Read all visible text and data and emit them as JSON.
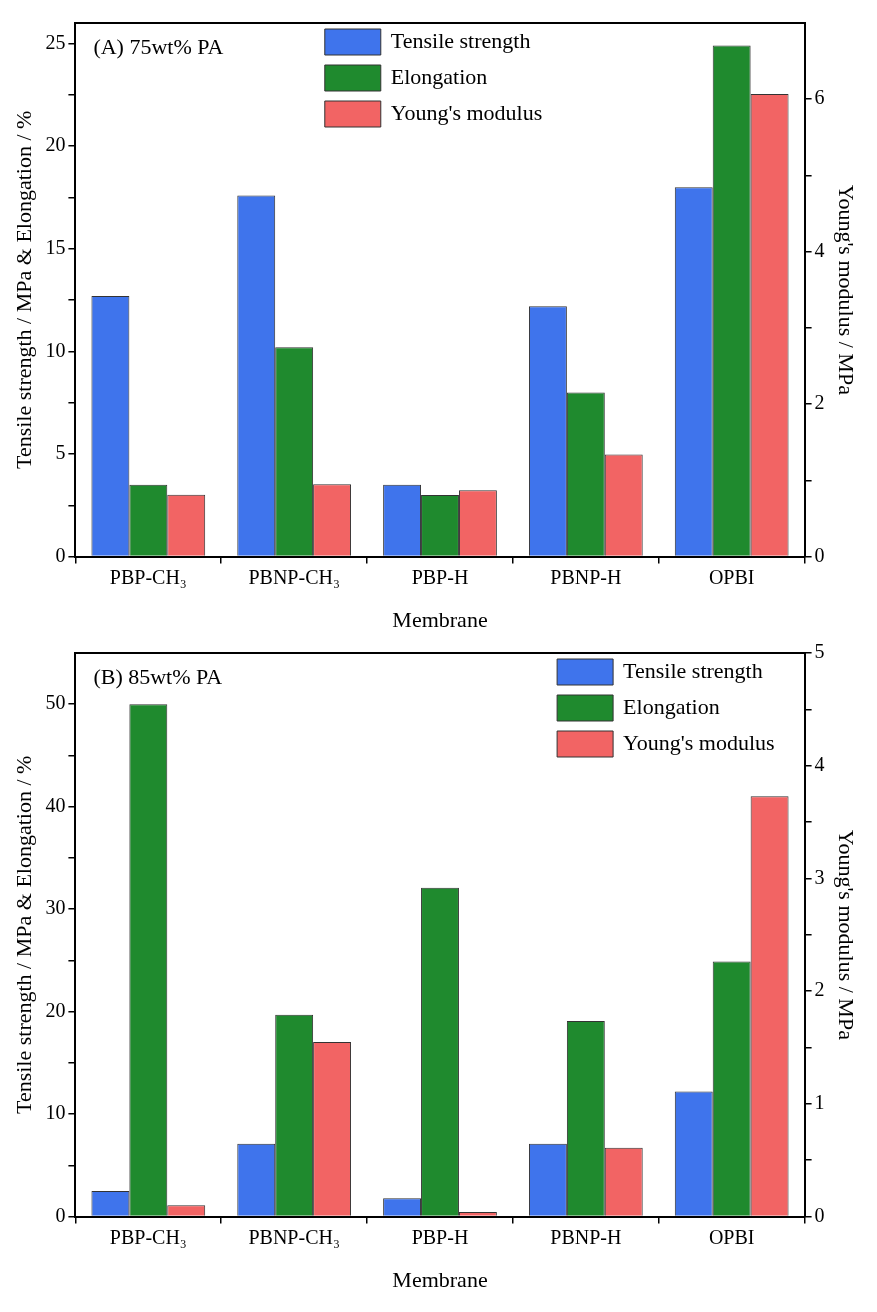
{
  "chart_data": [
    {
      "type": "bar",
      "title": "(A) 75wt% PA",
      "xlabel": "Membrane",
      "ylabel": "Tensile strength / MPa & Elongation / %",
      "y2label": "Young's modulus / MPa",
      "categories": [
        "PBP-CH₃",
        "PBNP-CH₃",
        "PBP-H",
        "PBNP-H",
        "OPBI"
      ],
      "series": [
        {
          "name": "Tensile strength",
          "color": "#3f74ec",
          "values": [
            12.7,
            17.6,
            3.5,
            12.2,
            18.0
          ]
        },
        {
          "name": "Elongation",
          "color": "#1f8a2e",
          "values": [
            3.5,
            10.2,
            3.0,
            8.0,
            24.9
          ]
        },
        {
          "name": "Young's modulus",
          "color": "#f26464",
          "axis": "y2",
          "values": [
            0.81,
            0.95,
            0.87,
            1.34,
            6.07
          ]
        }
      ],
      "ylim": [
        0,
        26
      ],
      "yticks": [
        0,
        {
          "value": 2.5,
          "label": null
        },
        5,
        {
          "value": 7.5,
          "label": null
        },
        10,
        {
          "value": 12.5,
          "label": null
        },
        15,
        {
          "value": 17.5,
          "label": null
        },
        20,
        {
          "value": 22.5,
          "label": null
        },
        25
      ],
      "y2lim": [
        0,
        7
      ],
      "y2ticks": [
        0,
        {
          "value": 1,
          "label": null
        },
        2,
        {
          "value": 3,
          "label": null
        },
        4,
        {
          "value": 5,
          "label": null
        },
        6
      ],
      "legend": "top",
      "grid": false
    },
    {
      "type": "bar",
      "title": "(B) 85wt% PA",
      "xlabel": "Membrane",
      "ylabel": "Tensile strength / MPa & Elongation / %",
      "y2label": "Young's modulus / MPa",
      "categories": [
        "PBP-CH₃",
        "PBNP-CH₃",
        "PBP-H",
        "PBNP-H",
        "OPBI"
      ],
      "series": [
        {
          "name": "Tensile strength",
          "color": "#3f74ec",
          "values": [
            2.5,
            7.1,
            1.8,
            7.1,
            12.2
          ]
        },
        {
          "name": "Elongation",
          "color": "#1f8a2e",
          "values": [
            50,
            19.7,
            32.1,
            19.1,
            24.9
          ]
        },
        {
          "name": "Young's modulus",
          "color": "#f26464",
          "axis": "y2",
          "values": [
            0.1,
            1.55,
            0.04,
            0.61,
            3.73
          ]
        }
      ],
      "ylim": [
        0,
        55
      ],
      "yticks": [
        0,
        {
          "value": 5,
          "label": null
        },
        10,
        {
          "value": 15,
          "label": null
        },
        20,
        {
          "value": 25,
          "label": null
        },
        30,
        {
          "value": 35,
          "label": null
        },
        40,
        {
          "value": 45,
          "label": null
        },
        50
      ],
      "y2lim": [
        0,
        5
      ],
      "y2ticks": [
        0,
        {
          "value": 0.5,
          "label": null
        },
        1,
        {
          "value": 1.5,
          "label": null
        },
        2,
        {
          "value": 2.5,
          "label": null
        },
        3,
        {
          "value": 3.5,
          "label": null
        },
        4,
        {
          "value": 4.5,
          "label": null
        },
        5
      ],
      "legend": "top right",
      "grid": false
    }
  ]
}
